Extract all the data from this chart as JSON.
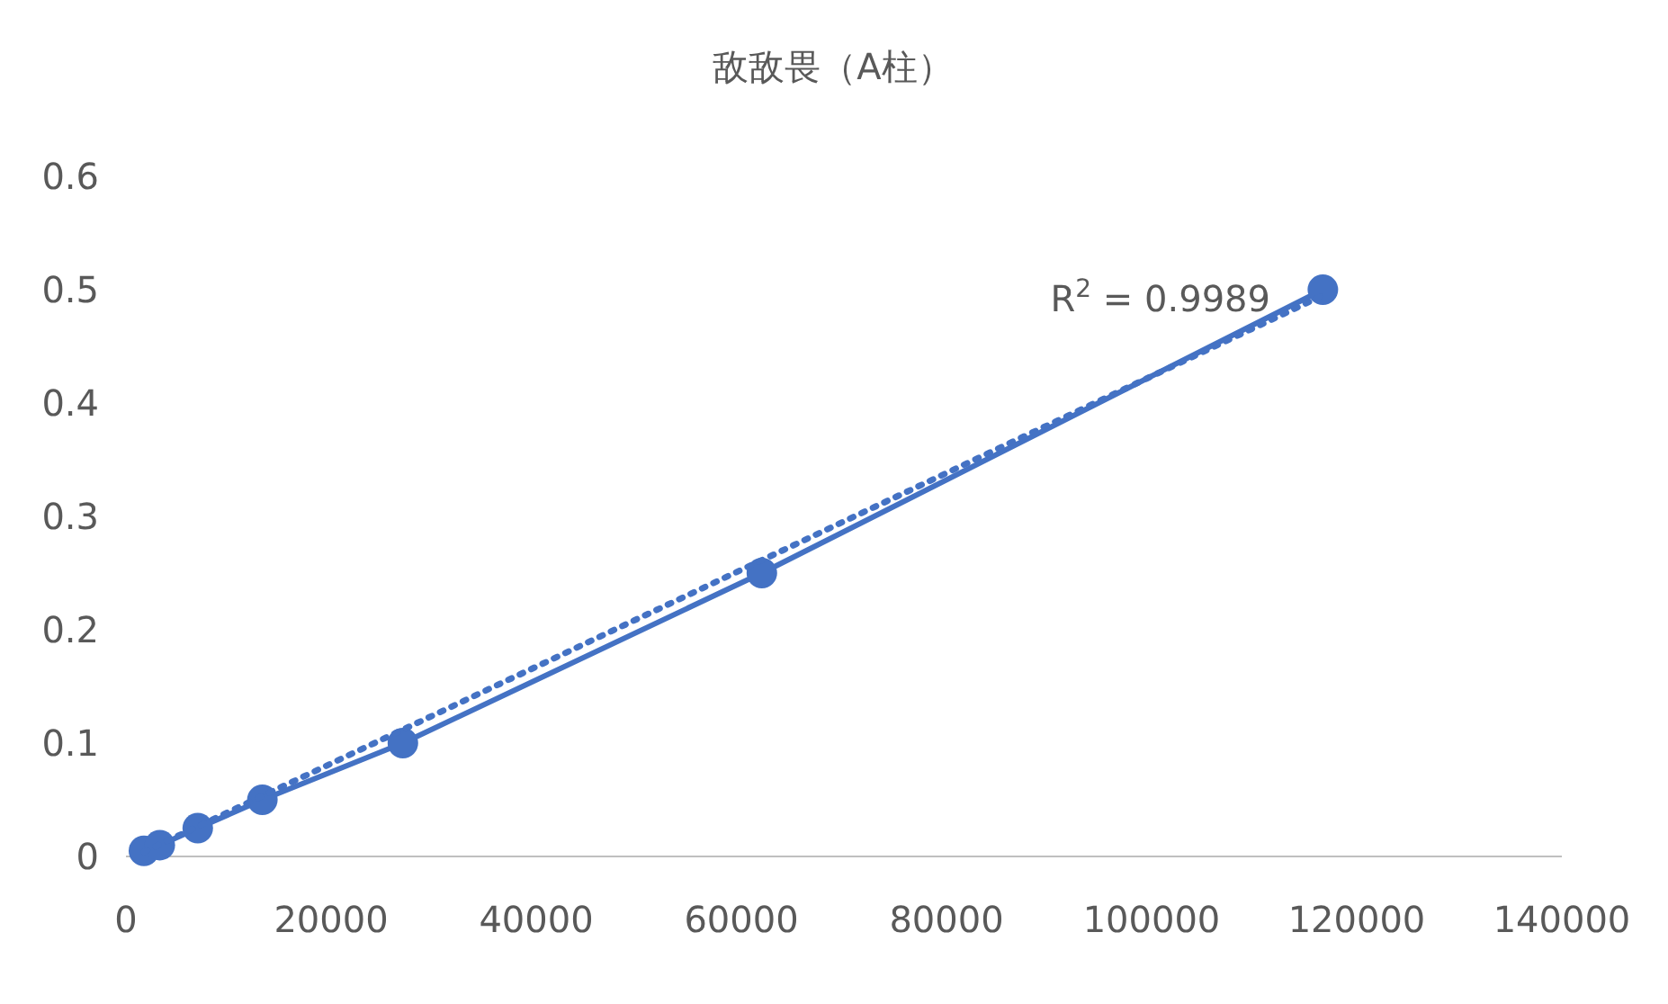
{
  "chart_data": {
    "type": "line",
    "title": "敌敌畏（A柱）",
    "series": [
      {
        "color": "#4472c4",
        "x": [
          1750,
          3300,
          7000,
          13300,
          27000,
          62000,
          116700
        ],
        "values": [
          0.005,
          0.01,
          0.025,
          0.05,
          0.1,
          0.25,
          0.5
        ]
      },
      {
        "color": "#4472c4",
        "x": [
          1750,
          116700
        ],
        "values": [
          0.004,
          0.495
        ],
        "marker": "none",
        "line_style": "dotted"
      }
    ],
    "marker": "circle",
    "line_style": "solid",
    "xlim": [
      0,
      140000
    ],
    "xticks": [
      0,
      20000,
      40000,
      60000,
      80000,
      100000,
      120000,
      140000
    ],
    "ylim": [
      0,
      0.6
    ],
    "yticks": [
      0,
      0.1,
      0.2,
      0.3,
      0.4,
      0.5,
      0.6
    ],
    "annotations": [
      "R$^{2}$ = 0.9989"
    ],
    "grid": false
  }
}
